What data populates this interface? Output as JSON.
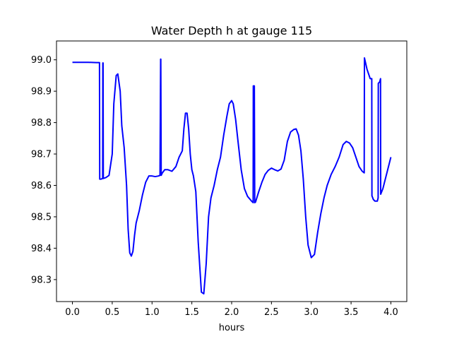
{
  "chart_data": {
    "type": "line",
    "title": "Water Depth h at gauge 115",
    "xlabel": "hours",
    "ylabel": "",
    "xlim": [
      -0.2,
      4.2
    ],
    "ylim": [
      98.23,
      99.06
    ],
    "xticks": [
      0.0,
      0.5,
      1.0,
      1.5,
      2.0,
      2.5,
      3.0,
      3.5,
      4.0
    ],
    "xtick_labels": [
      "0.0",
      "0.5",
      "1.0",
      "1.5",
      "2.0",
      "2.5",
      "3.0",
      "3.5",
      "4.0"
    ],
    "yticks": [
      98.3,
      98.4,
      98.5,
      98.6,
      98.7,
      98.8,
      98.9,
      99.0
    ],
    "ytick_labels": [
      "98.3",
      "98.4",
      "98.5",
      "98.6",
      "98.7",
      "98.8",
      "98.9",
      "99.0"
    ],
    "grid": false,
    "series": [
      {
        "color": "#0000ff",
        "x": [
          0.0,
          0.1,
          0.2,
          0.3,
          0.34,
          0.343,
          0.36,
          0.38,
          0.382,
          0.385,
          0.388,
          0.42,
          0.46,
          0.5,
          0.52,
          0.55,
          0.57,
          0.6,
          0.62,
          0.65,
          0.68,
          0.7,
          0.72,
          0.74,
          0.76,
          0.78,
          0.8,
          0.84,
          0.88,
          0.92,
          0.96,
          1.0,
          1.04,
          1.08,
          1.1,
          1.108,
          1.11,
          1.115,
          1.13,
          1.16,
          1.2,
          1.25,
          1.3,
          1.34,
          1.38,
          1.4,
          1.42,
          1.44,
          1.46,
          1.48,
          1.5,
          1.52,
          1.55,
          1.58,
          1.62,
          1.65,
          1.68,
          1.71,
          1.74,
          1.78,
          1.82,
          1.86,
          1.9,
          1.94,
          1.97,
          2.0,
          2.02,
          2.05,
          2.08,
          2.12,
          2.16,
          2.2,
          2.25,
          2.27,
          2.272,
          2.285,
          2.29,
          2.3,
          2.34,
          2.38,
          2.42,
          2.46,
          2.5,
          2.54,
          2.58,
          2.62,
          2.66,
          2.7,
          2.74,
          2.78,
          2.81,
          2.84,
          2.87,
          2.9,
          2.93,
          2.96,
          3.0,
          3.04,
          3.08,
          3.12,
          3.16,
          3.2,
          3.25,
          3.3,
          3.35,
          3.4,
          3.44,
          3.48,
          3.52,
          3.56,
          3.6,
          3.64,
          3.665,
          3.668,
          3.7,
          3.74,
          3.76,
          3.762,
          3.78,
          3.8,
          3.83,
          3.84,
          3.842,
          3.86,
          3.87,
          3.872,
          3.9,
          3.95,
          4.0
        ],
        "y": [
          98.992,
          98.992,
          98.992,
          98.991,
          98.991,
          98.62,
          98.62,
          98.622,
          98.99,
          98.99,
          98.622,
          98.625,
          98.632,
          98.7,
          98.86,
          98.95,
          98.955,
          98.9,
          98.79,
          98.72,
          98.6,
          98.46,
          98.385,
          98.375,
          98.39,
          98.44,
          98.48,
          98.52,
          98.57,
          98.61,
          98.63,
          98.63,
          98.628,
          98.63,
          98.632,
          99.002,
          99.002,
          98.632,
          98.64,
          98.65,
          98.65,
          98.645,
          98.66,
          98.69,
          98.71,
          98.78,
          98.83,
          98.83,
          98.78,
          98.7,
          98.65,
          98.63,
          98.58,
          98.42,
          98.26,
          98.255,
          98.35,
          98.5,
          98.56,
          98.6,
          98.65,
          98.69,
          98.76,
          98.82,
          98.86,
          98.87,
          98.86,
          98.81,
          98.74,
          98.65,
          98.59,
          98.565,
          98.55,
          98.545,
          98.917,
          98.917,
          98.545,
          98.547,
          98.58,
          98.61,
          98.635,
          98.648,
          98.655,
          98.65,
          98.646,
          98.652,
          98.68,
          98.74,
          98.77,
          98.778,
          98.78,
          98.76,
          98.71,
          98.62,
          98.5,
          98.41,
          98.37,
          98.38,
          98.45,
          98.51,
          98.56,
          98.6,
          98.635,
          98.66,
          98.69,
          98.73,
          98.74,
          98.735,
          98.72,
          98.69,
          98.66,
          98.645,
          98.64,
          99.006,
          98.97,
          98.94,
          98.94,
          98.567,
          98.555,
          98.55,
          98.55,
          98.56,
          98.925,
          98.93,
          98.94,
          98.572,
          98.59,
          98.64,
          98.69
        ]
      }
    ]
  }
}
